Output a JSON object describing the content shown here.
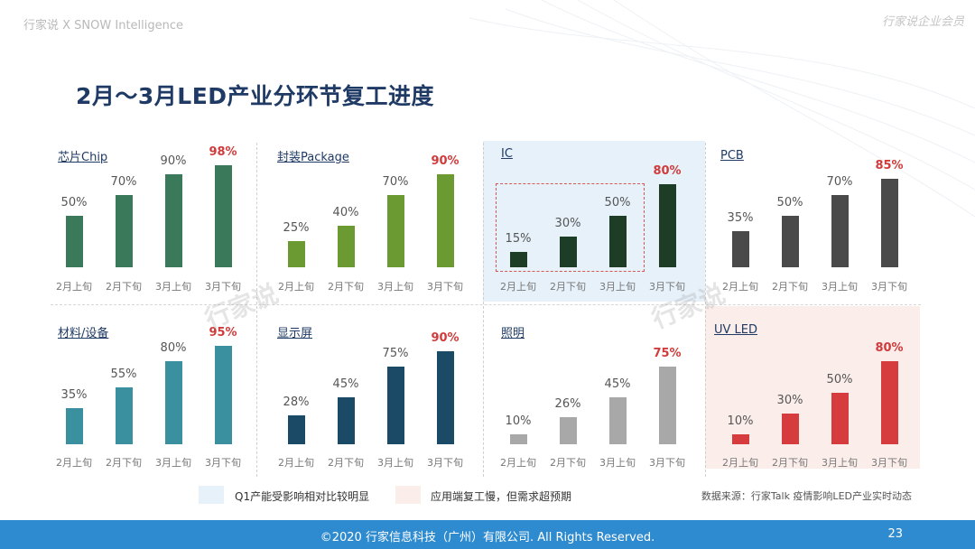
{
  "header": {
    "left": "行家说 X SNOW Intelligence",
    "right": "行家说企业会员"
  },
  "title": "2月～3月LED产业分环节复工进度",
  "watermark": "行家说",
  "chart_data": [
    {
      "type": "bar",
      "title": "芯片Chip",
      "categories": [
        "2月上旬",
        "2月下旬",
        "3月上旬",
        "3月下旬"
      ],
      "values": [
        50,
        70,
        90,
        98
      ],
      "labels": [
        "50%",
        "70%",
        "90%",
        "98%"
      ],
      "color": "#3a7a5a",
      "ylim": [
        0,
        100
      ]
    },
    {
      "type": "bar",
      "title": "封装Package",
      "categories": [
        "2月上旬",
        "2月下旬",
        "3月上旬",
        "3月下旬"
      ],
      "values": [
        25,
        40,
        70,
        90
      ],
      "labels": [
        "25%",
        "40%",
        "70%",
        "90%"
      ],
      "color": "#6b9a33",
      "ylim": [
        0,
        100
      ]
    },
    {
      "type": "bar",
      "title": "IC",
      "categories": [
        "2月上旬",
        "2月下旬",
        "3月上旬",
        "3月下旬"
      ],
      "values": [
        15,
        30,
        50,
        80
      ],
      "labels": [
        "15%",
        "30%",
        "50%",
        "80%"
      ],
      "color": "#1e3d26",
      "ylim": [
        0,
        100
      ]
    },
    {
      "type": "bar",
      "title": "PCB",
      "categories": [
        "2月上旬",
        "2月下旬",
        "3月上旬",
        "3月下旬"
      ],
      "values": [
        35,
        50,
        70,
        85
      ],
      "labels": [
        "35%",
        "50%",
        "70%",
        "85%"
      ],
      "color": "#4a4a4a",
      "ylim": [
        0,
        100
      ]
    },
    {
      "type": "bar",
      "title": "材料/设备",
      "categories": [
        "2月上旬",
        "2月下旬",
        "3月上旬",
        "3月下旬"
      ],
      "values": [
        35,
        55,
        80,
        95
      ],
      "labels": [
        "35%",
        "55%",
        "80%",
        "95%"
      ],
      "color": "#3a909e",
      "ylim": [
        0,
        100
      ]
    },
    {
      "type": "bar",
      "title": "显示屏",
      "categories": [
        "2月上旬",
        "2月下旬",
        "3月上旬",
        "3月下旬"
      ],
      "values": [
        28,
        45,
        75,
        90
      ],
      "labels": [
        "28%",
        "45%",
        "75%",
        "90%"
      ],
      "color": "#1b4a67",
      "ylim": [
        0,
        100
      ]
    },
    {
      "type": "bar",
      "title": "照明",
      "categories": [
        "2月上旬",
        "2月下旬",
        "3月上旬",
        "3月下旬"
      ],
      "values": [
        10,
        26,
        45,
        75
      ],
      "labels": [
        "10%",
        "26%",
        "45%",
        "75%"
      ],
      "color": "#a8a8a8",
      "ylim": [
        0,
        100
      ]
    },
    {
      "type": "bar",
      "title": "UV LED",
      "categories": [
        "2月上旬",
        "2月下旬",
        "3月上旬",
        "3月下旬"
      ],
      "values": [
        10,
        30,
        50,
        80
      ],
      "labels": [
        "10%",
        "30%",
        "50%",
        "80%"
      ],
      "color": "#d63b3e",
      "ylim": [
        0,
        100
      ]
    }
  ],
  "highlight_color": "#d13b3b",
  "legend": [
    {
      "label": "Q1产能受影响相对比较明显",
      "color": "#e6f1fa"
    },
    {
      "label": "应用端复工慢，但需求超预期",
      "color": "#fbeeea"
    }
  ],
  "source": "数据来源：行家Talk 疫情影响LED产业实时动态",
  "footer": {
    "copyright": "©2020 行家信息科技（广州）有限公司. All Rights Reserved.",
    "page": "23"
  }
}
